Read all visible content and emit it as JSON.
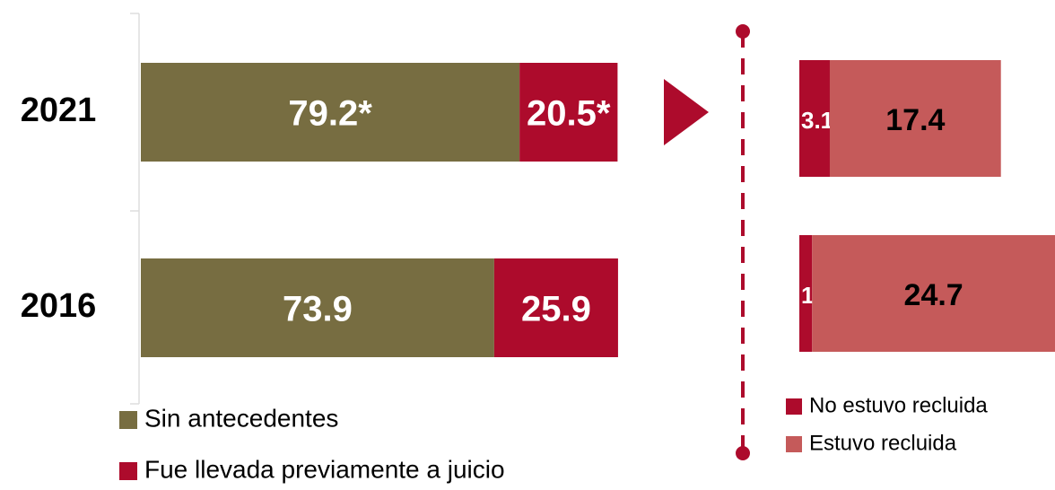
{
  "chart_data": [
    {
      "type": "stacked-bar-horizontal",
      "categories": [
        "2021",
        "2016"
      ],
      "xlim": [
        0,
        100
      ],
      "series": [
        {
          "name": "Sin antecedentes",
          "color": "#776d41",
          "values": [
            79.2,
            73.9
          ],
          "value_labels": [
            "79.2*",
            "73.9"
          ]
        },
        {
          "name": "Fue llevada previamente a juicio",
          "color": "#ad0b2c",
          "values": [
            20.5,
            25.9
          ],
          "value_labels": [
            "20.5*",
            "25.9"
          ]
        }
      ]
    },
    {
      "type": "stacked-bar-horizontal",
      "categories": [
        null,
        null
      ],
      "xlim": [
        0,
        26
      ],
      "series": [
        {
          "name": "No estuvo recluida",
          "color": "#ad0b2c",
          "values": [
            3.1,
            1.3
          ]
        },
        {
          "name": "Estuvo recluida",
          "color": "#c55a5a",
          "values": [
            17.4,
            24.7
          ]
        }
      ]
    }
  ]
}
